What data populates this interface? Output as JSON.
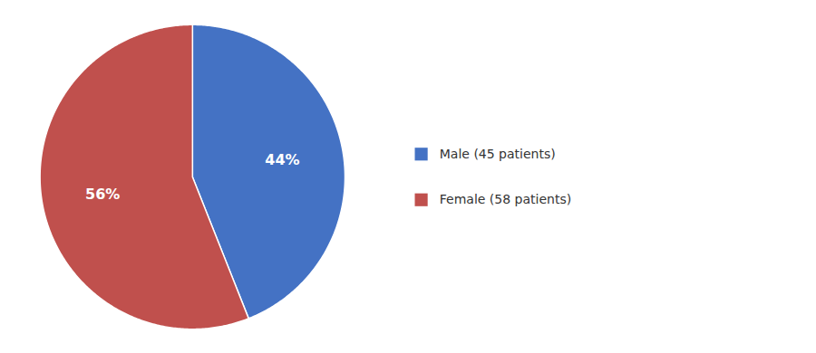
{
  "chart_data": {
    "type": "pie",
    "categories": [
      "Male (45 patients)",
      "Female (58 patients)"
    ],
    "values": [
      44,
      56
    ],
    "value_labels": [
      "44%",
      "56%"
    ],
    "colors": [
      "#4472C4",
      "#C0504D"
    ],
    "data_labels": true,
    "legend": "right"
  }
}
